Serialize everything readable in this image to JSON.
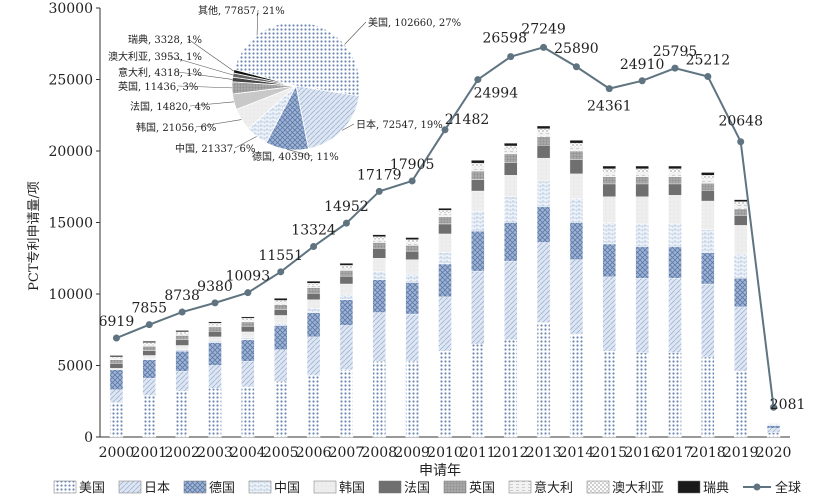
{
  "chart_data": [
    {
      "type": "bar",
      "stacked": true,
      "xlabel": "申请年",
      "ylabel": "PCT专利申请量/项",
      "ylim": [
        0,
        30000
      ],
      "yticks": [
        0,
        5000,
        10000,
        15000,
        20000,
        25000,
        30000
      ],
      "categories": [
        "2000",
        "2001",
        "2002",
        "2003",
        "2004",
        "2005",
        "2006",
        "2007",
        "2008",
        "2009",
        "2010",
        "2011",
        "2012",
        "2013",
        "2014",
        "2015",
        "2016",
        "2017",
        "2018",
        "2019",
        "2020"
      ],
      "legend_position": "bottom",
      "series": [
        {
          "name": "美国",
          "color": "#8fa8cc",
          "values": [
            2400,
            2900,
            3200,
            3400,
            3500,
            3900,
            4300,
            4700,
            5300,
            5300,
            6000,
            6500,
            6800,
            8000,
            7200,
            6000,
            5900,
            5900,
            5600,
            4600,
            300
          ]
        },
        {
          "name": "日本",
          "color": "#c9d8ea",
          "values": [
            900,
            1200,
            1400,
            1600,
            1800,
            2200,
            2700,
            3100,
            3400,
            3300,
            3800,
            5100,
            5500,
            5600,
            5200,
            5200,
            5200,
            5200,
            5100,
            4500,
            300
          ]
        },
        {
          "name": "德国",
          "color": "#7d95bd",
          "values": [
            1400,
            1300,
            1400,
            1600,
            1500,
            1700,
            1700,
            1800,
            2300,
            2200,
            2300,
            2800,
            2700,
            2500,
            2600,
            2300,
            2200,
            2200,
            2200,
            2000,
            200
          ]
        },
        {
          "name": "中国",
          "color": "#dce7f3",
          "values": [
            0,
            100,
            100,
            100,
            150,
            200,
            300,
            400,
            600,
            600,
            800,
            1400,
            1800,
            1800,
            1700,
            1500,
            1600,
            1600,
            1600,
            1700,
            100
          ]
        },
        {
          "name": "韩国",
          "color": "#eaeaea",
          "values": [
            100,
            200,
            300,
            300,
            400,
            500,
            600,
            700,
            900,
            1000,
            1300,
            1400,
            1500,
            1600,
            1700,
            1800,
            1900,
            2000,
            2000,
            2000,
            50
          ]
        },
        {
          "name": "法国",
          "color": "#6f6f6f",
          "values": [
            350,
            350,
            400,
            400,
            400,
            400,
            450,
            550,
            700,
            600,
            700,
            800,
            900,
            900,
            1000,
            900,
            900,
            800,
            750,
            700,
            20
          ]
        },
        {
          "name": "英国",
          "color": "#a0a0a0",
          "values": [
            250,
            300,
            300,
            300,
            300,
            350,
            400,
            400,
            400,
            400,
            500,
            600,
            600,
            600,
            600,
            500,
            500,
            500,
            500,
            450,
            10
          ]
        },
        {
          "name": "意大利",
          "color": "#dcdcdc",
          "values": [
            100,
            100,
            100,
            100,
            100,
            150,
            150,
            150,
            200,
            200,
            250,
            300,
            300,
            300,
            300,
            300,
            300,
            300,
            300,
            300,
            5
          ]
        },
        {
          "name": "澳大利亚",
          "color": "#f0f0f0",
          "values": [
            100,
            150,
            150,
            150,
            150,
            150,
            150,
            200,
            200,
            200,
            200,
            250,
            250,
            250,
            250,
            250,
            250,
            250,
            250,
            200,
            5
          ]
        },
        {
          "name": "瑞典",
          "color": "#1a1a1a",
          "values": [
            100,
            100,
            100,
            100,
            100,
            150,
            150,
            150,
            150,
            150,
            150,
            200,
            200,
            200,
            200,
            200,
            200,
            200,
            200,
            150,
            3
          ]
        }
      ],
      "line": {
        "name": "全球",
        "color": "#5f7480",
        "values": [
          6919,
          7855,
          8738,
          9380,
          10093,
          11551,
          13324,
          14952,
          17179,
          17905,
          21482,
          24994,
          26598,
          27249,
          25890,
          24361,
          24910,
          25795,
          25212,
          20648,
          2081
        ]
      }
    },
    {
      "type": "pie",
      "slices": [
        {
          "name": "美国",
          "value": 102660,
          "percent": "27%",
          "label": "美国, 102660, 27%",
          "color": "#b9cce4"
        },
        {
          "name": "日本",
          "value": 72547,
          "percent": "19%",
          "label": "日本, 72547, 19%",
          "color": "#d6e2f0"
        },
        {
          "name": "德国",
          "value": 40390,
          "percent": "11%",
          "label": "德国, 40390, 11%",
          "color": "#8fa8cc"
        },
        {
          "name": "中国",
          "value": 21337,
          "percent": "6%",
          "label": "中国, 21337, 6%",
          "color": "#e4ecf6"
        },
        {
          "name": "韩国",
          "value": 21056,
          "percent": "6%",
          "label": "韩国, 21056, 6%",
          "color": "#eeeeee"
        },
        {
          "name": "法国",
          "value": 14820,
          "percent": "4%",
          "label": "法国, 14820, 4%",
          "color": "#cfcfcf"
        },
        {
          "name": "英国",
          "value": 11436,
          "percent": "3%",
          "label": "英国, 11436, 3%",
          "color": "#8a8a8a"
        },
        {
          "name": "意大利",
          "value": 4318,
          "percent": "1%",
          "label": "意大利, 4318, 1%",
          "color": "#3c3c3c"
        },
        {
          "name": "澳大利亚",
          "value": 3953,
          "percent": "1%",
          "label": "澳大利亚, 3953, 1%",
          "color": "#5a5a5a"
        },
        {
          "name": "瑞典",
          "value": 3328,
          "percent": "1%",
          "label": "瑞典, 3328, 1%",
          "color": "#1a1a1a"
        },
        {
          "name": "其他",
          "value": 77857,
          "percent": "21%",
          "label": "其他, 77857, 21%",
          "color": "#c3d3e8"
        }
      ]
    }
  ]
}
